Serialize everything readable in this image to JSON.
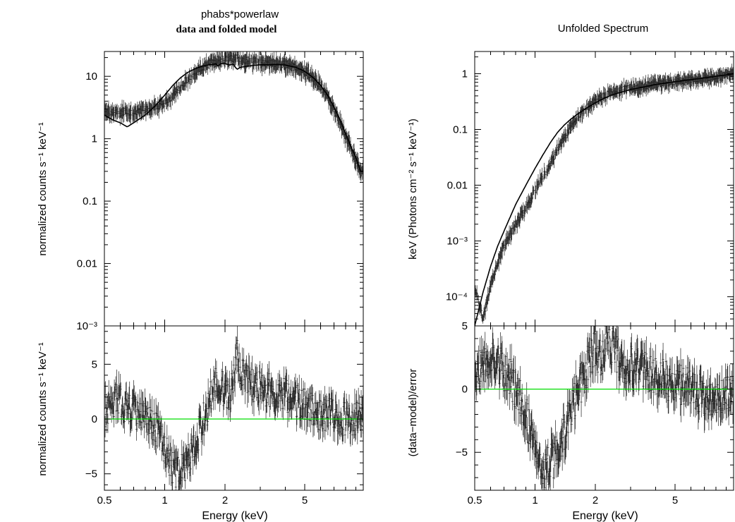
{
  "chart_data": [
    {
      "type": "line",
      "title": "phabs*powerlaw",
      "subtitle": "data and folded model",
      "top": {
        "ylabel": "normalized counts s⁻¹ keV⁻¹",
        "yscale": "log",
        "ylim": [
          0.001,
          25
        ],
        "yticks": [
          {
            "v": 10,
            "label": "10"
          },
          {
            "v": 1,
            "label": "1"
          },
          {
            "v": 0.1,
            "label": "0.1"
          },
          {
            "v": 0.01,
            "label": "0.01"
          },
          {
            "v": 0.001,
            "label": "10⁻³"
          }
        ],
        "series": [
          {
            "style": "data",
            "x": [
              0.5,
              0.55,
              0.6,
              0.65,
              0.7,
              0.75,
              0.8,
              0.9,
              1.0,
              1.1,
              1.2,
              1.3,
              1.4,
              1.5,
              1.6,
              1.7,
              1.8,
              1.9,
              2.0,
              2.1,
              2.2,
              2.3,
              2.4,
              2.6,
              2.8,
              3.0,
              3.5,
              4.0,
              4.5,
              5.0,
              5.5,
              6.0,
              6.5,
              7.0,
              7.5,
              8.0,
              8.5,
              9.0,
              9.5
            ],
            "y": [
              2.7,
              2.7,
              2.6,
              2.8,
              2.6,
              2.8,
              2.9,
              3.2,
              3.8,
              5.0,
              6.8,
              9.0,
              11.0,
              13.0,
              15.0,
              17.0,
              18.0,
              18.5,
              18.8,
              18.5,
              19.0,
              20.0,
              18.5,
              17.5,
              17.0,
              16.5,
              16.0,
              15.5,
              14.0,
              12.0,
              9.5,
              7.0,
              4.8,
              3.0,
              1.8,
              1.1,
              0.7,
              0.45,
              0.3
            ]
          },
          {
            "style": "model",
            "x": [
              0.5,
              0.55,
              0.6,
              0.65,
              0.7,
              0.8,
              0.9,
              1.0,
              1.1,
              1.2,
              1.3,
              1.4,
              1.5,
              1.6,
              1.7,
              1.8,
              1.85,
              1.9,
              2.0,
              2.1,
              2.2,
              2.25,
              2.3,
              2.35,
              2.4,
              2.6,
              2.8,
              3.0,
              3.5,
              4.0,
              4.5,
              5.0,
              5.5,
              6.0,
              6.5,
              7.0,
              7.5,
              8.0,
              8.5,
              9.0,
              9.5
            ],
            "y": [
              2.4,
              2.0,
              1.8,
              1.55,
              1.8,
              2.4,
              3.4,
              5.0,
              7.2,
              9.5,
              11.5,
              13.0,
              14.2,
              15.0,
              15.5,
              15.8,
              14.5,
              16.0,
              16.0,
              15.2,
              15.8,
              14.0,
              13.0,
              13.5,
              14.0,
              14.6,
              15.0,
              15.3,
              15.5,
              15.2,
              14.0,
              12.0,
              9.6,
              7.2,
              5.0,
              3.2,
              2.0,
              1.2,
              0.75,
              0.5,
              0.3
            ]
          }
        ]
      },
      "bottom": {
        "ylabel": "normalized counts s⁻¹ keV⁻¹",
        "ylim": [
          -6.5,
          8.5
        ],
        "yticks": [
          {
            "v": 5,
            "label": "5"
          },
          {
            "v": 0,
            "label": "0"
          },
          {
            "v": -5,
            "label": "−5"
          }
        ],
        "zero_line_color": "#00dd00",
        "series": [
          {
            "style": "residual",
            "x": [
              0.5,
              0.55,
              0.6,
              0.65,
              0.7,
              0.75,
              0.8,
              0.9,
              1.0,
              1.1,
              1.2,
              1.3,
              1.4,
              1.5,
              1.6,
              1.7,
              1.8,
              1.9,
              2.0,
              2.1,
              2.2,
              2.3,
              2.4,
              2.6,
              2.8,
              3.0,
              3.5,
              4.0,
              4.5,
              5.0,
              6.0,
              7.0,
              8.0,
              9.0,
              9.5
            ],
            "y": [
              0.5,
              1.5,
              1.8,
              1.0,
              0.8,
              0.5,
              0.0,
              -0.8,
              -2.5,
              -4.5,
              -5.0,
              -4.0,
              -3.0,
              -1.0,
              0.5,
              2.0,
              3.5,
              3.0,
              2.5,
              2.0,
              4.0,
              6.0,
              4.0,
              3.5,
              3.0,
              2.8,
              2.5,
              2.2,
              1.8,
              1.2,
              0.5,
              0.2,
              0.0,
              0.0,
              0.0
            ]
          }
        ]
      },
      "xlabel": "Energy (keV)",
      "xscale": "log",
      "xlim": [
        0.5,
        9.8
      ],
      "xticks": [
        {
          "v": 0.5,
          "label": "0.5"
        },
        {
          "v": 1,
          "label": "1"
        },
        {
          "v": 2,
          "label": "2"
        },
        {
          "v": 5,
          "label": "5"
        }
      ]
    },
    {
      "type": "line",
      "title": "Unfolded Spectrum",
      "top": {
        "ylabel": "keV (Photons cm⁻² s⁻¹ keV⁻¹)",
        "yscale": "log",
        "ylim": [
          3e-05,
          2.5
        ],
        "yticks": [
          {
            "v": 1,
            "label": "1"
          },
          {
            "v": 0.1,
            "label": "0.1"
          },
          {
            "v": 0.01,
            "label": "0.01"
          },
          {
            "v": 0.001,
            "label": "10⁻³"
          },
          {
            "v": 0.0001,
            "label": "10⁻⁴"
          }
        ],
        "series": [
          {
            "style": "data",
            "x": [
              0.5,
              0.55,
              0.6,
              0.65,
              0.7,
              0.8,
              0.9,
              1.0,
              1.1,
              1.2,
              1.3,
              1.4,
              1.5,
              1.6,
              1.8,
              2.0,
              2.2,
              2.4,
              2.6,
              3.0,
              3.5,
              4.0,
              5.0,
              6.0,
              7.0,
              8.0,
              9.0,
              9.5
            ],
            "y": [
              0.00015,
              4e-05,
              0.00015,
              0.0004,
              0.0008,
              0.002,
              0.004,
              0.008,
              0.015,
              0.025,
              0.045,
              0.07,
              0.11,
              0.16,
              0.24,
              0.32,
              0.4,
              0.45,
              0.5,
              0.55,
              0.6,
              0.65,
              0.72,
              0.78,
              0.82,
              0.88,
              0.95,
              1.0
            ]
          },
          {
            "style": "model",
            "x": [
              0.5,
              0.55,
              0.6,
              0.65,
              0.7,
              0.8,
              0.9,
              1.0,
              1.1,
              1.2,
              1.3,
              1.4,
              1.5,
              1.6,
              1.8,
              2.0,
              2.2,
              2.4,
              2.6,
              3.0,
              3.5,
              4.0,
              5.0,
              6.0,
              7.0,
              8.0,
              9.0,
              9.8
            ],
            "y": [
              3e-05,
              0.00012,
              0.00035,
              0.0008,
              0.0015,
              0.0045,
              0.01,
              0.02,
              0.036,
              0.06,
              0.09,
              0.12,
              0.15,
              0.18,
              0.24,
              0.3,
              0.36,
              0.41,
              0.45,
              0.52,
              0.58,
              0.64,
              0.72,
              0.78,
              0.84,
              0.9,
              0.95,
              1.0
            ]
          }
        ]
      },
      "bottom": {
        "ylabel": "(data−model)/error",
        "ylim": [
          -8,
          5
        ],
        "yticks": [
          {
            "v": 5,
            "label": "5"
          },
          {
            "v": 0,
            "label": "0"
          },
          {
            "v": -5,
            "label": "−5"
          }
        ],
        "zero_line_color": "#00dd00",
        "series": [
          {
            "style": "residual",
            "x": [
              0.5,
              0.55,
              0.6,
              0.65,
              0.7,
              0.75,
              0.8,
              0.9,
              1.0,
              1.1,
              1.2,
              1.3,
              1.4,
              1.5,
              1.6,
              1.7,
              1.8,
              1.9,
              2.0,
              2.1,
              2.2,
              2.3,
              2.4,
              2.6,
              2.8,
              3.0,
              3.5,
              4.0,
              5.0,
              6.0,
              7.0,
              8.0,
              9.0,
              9.5
            ],
            "y": [
              1.0,
              2.0,
              2.5,
              2.0,
              1.5,
              1.0,
              0.0,
              -2.0,
              -4.5,
              -6.5,
              -6.0,
              -5.0,
              -3.5,
              -2.0,
              -0.5,
              0.5,
              1.5,
              2.5,
              3.0,
              2.5,
              3.0,
              5.0,
              3.5,
              2.5,
              2.0,
              1.8,
              1.5,
              1.0,
              0.5,
              0.0,
              -0.5,
              -0.8,
              -0.5,
              -0.3
            ]
          }
        ]
      },
      "xlabel": "Energy (keV)",
      "xscale": "log",
      "xlim": [
        0.5,
        9.8
      ],
      "xticks": [
        {
          "v": 0.5,
          "label": "0.5"
        },
        {
          "v": 1,
          "label": "1"
        },
        {
          "v": 2,
          "label": "2"
        },
        {
          "v": 5,
          "label": "5"
        }
      ]
    }
  ]
}
